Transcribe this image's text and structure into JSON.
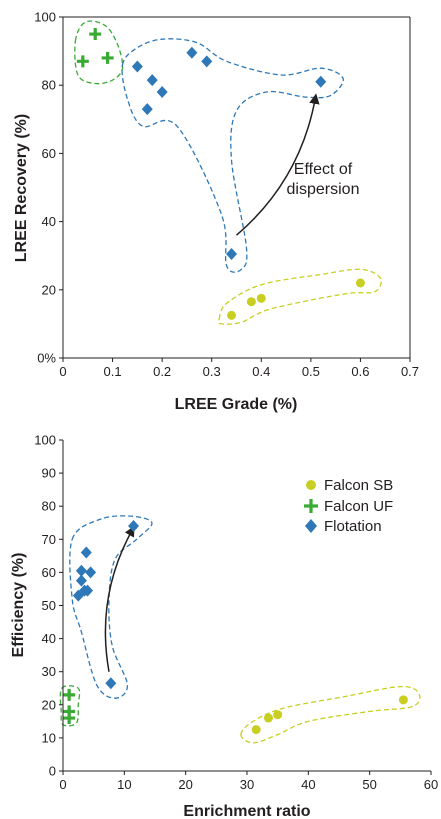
{
  "colors": {
    "falcon_sb": "#c8cf22",
    "falcon_uf": "#3aaa35",
    "flotation": "#2e78b7",
    "axis": "#231f20",
    "arrow": "#231f20"
  },
  "chart_data": [
    {
      "type": "scatter",
      "xlabel": "LREE Grade (%)",
      "ylabel": "LREE Recovery (%)",
      "xlim": [
        0,
        0.7
      ],
      "ylim": [
        0,
        100
      ],
      "x_ticks": [
        "0",
        "0.1",
        "0.2",
        "0.3",
        "0.4",
        "0.5",
        "0.6",
        "0.7"
      ],
      "y_ticks": [
        "0%",
        "20",
        "40",
        "60",
        "80",
        "100"
      ],
      "x_tick_values": [
        0,
        0.1,
        0.2,
        0.3,
        0.4,
        0.5,
        0.6,
        0.7
      ],
      "y_tick_values": [
        0,
        20,
        40,
        60,
        80,
        100
      ],
      "grid": false,
      "legend": null,
      "annotation": {
        "line1": "Effect of",
        "line2": "dispersion",
        "x": 0.46,
        "y": 52
      },
      "arrow": {
        "from": [
          0.35,
          36
        ],
        "to": [
          0.51,
          77
        ]
      },
      "series": [
        {
          "key": "falcon_sb",
          "marker": "circle",
          "x": [
            0.34,
            0.38,
            0.4,
            0.6
          ],
          "y": [
            12.5,
            16.5,
            17.5,
            22.0
          ]
        },
        {
          "key": "falcon_uf",
          "marker": "plus",
          "x": [
            0.04,
            0.065,
            0.09
          ],
          "y": [
            87,
            95,
            88
          ]
        },
        {
          "key": "flotation",
          "marker": "diamond",
          "x": [
            0.15,
            0.17,
            0.18,
            0.2,
            0.26,
            0.29,
            0.34,
            0.52
          ],
          "y": [
            85.5,
            73,
            81.5,
            78,
            89.5,
            87,
            30.5,
            81
          ]
        }
      ],
      "hulls": [
        {
          "key": "falcon_uf",
          "points": [
            [
              0.025,
              93
            ],
            [
              0.045,
              98.5
            ],
            [
              0.085,
              97.5
            ],
            [
              0.11,
              92
            ],
            [
              0.12,
              85
            ],
            [
              0.1,
              81.5
            ],
            [
              0.065,
              80.5
            ],
            [
              0.03,
              83
            ]
          ]
        },
        {
          "key": "flotation",
          "points": [
            [
              0.12,
              86
            ],
            [
              0.15,
              91
            ],
            [
              0.2,
              93.5
            ],
            [
              0.27,
              92.5
            ],
            [
              0.33,
              87
            ],
            [
              0.44,
              83
            ],
            [
              0.52,
              85
            ],
            [
              0.565,
              82
            ],
            [
              0.54,
              77
            ],
            [
              0.49,
              76.5
            ],
            [
              0.41,
              78
            ],
            [
              0.35,
              72.5
            ],
            [
              0.34,
              58
            ],
            [
              0.37,
              32.5
            ],
            [
              0.36,
              26
            ],
            [
              0.33,
              27
            ],
            [
              0.32,
              42
            ],
            [
              0.23,
              68
            ],
            [
              0.16,
              68
            ],
            [
              0.13,
              76
            ]
          ]
        },
        {
          "key": "falcon_sb",
          "points": [
            [
              0.315,
              11.5
            ],
            [
              0.33,
              16
            ],
            [
              0.4,
              21.5
            ],
            [
              0.52,
              24.5
            ],
            [
              0.6,
              26
            ],
            [
              0.64,
              23.5
            ],
            [
              0.63,
              19.5
            ],
            [
              0.58,
              19
            ],
            [
              0.5,
              17
            ],
            [
              0.41,
              14
            ],
            [
              0.36,
              10.5
            ],
            [
              0.32,
              10
            ]
          ]
        }
      ]
    },
    {
      "type": "scatter",
      "xlabel": "Enrichment ratio",
      "ylabel": "Efficiency (%)",
      "xlim": [
        0,
        60
      ],
      "ylim": [
        0,
        100
      ],
      "x_ticks": [
        "0",
        "10",
        "20",
        "30",
        "40",
        "50",
        "60"
      ],
      "y_ticks": [
        "0",
        "10",
        "20",
        "30",
        "40",
        "50",
        "60",
        "70",
        "80",
        "90",
        "100"
      ],
      "x_tick_values": [
        0,
        10,
        20,
        30,
        40,
        50,
        60
      ],
      "y_tick_values": [
        0,
        10,
        20,
        30,
        40,
        50,
        60,
        70,
        80,
        90,
        100
      ],
      "grid": false,
      "legend": {
        "position": "top-right",
        "entries": [
          {
            "key": "falcon_sb",
            "label": "Falcon SB",
            "marker": "circle"
          },
          {
            "key": "falcon_uf",
            "label": "Falcon UF",
            "marker": "plus"
          },
          {
            "key": "flotation",
            "label": "Flotation",
            "marker": "diamond"
          }
        ]
      },
      "arrow": {
        "from": [
          7.5,
          30
        ],
        "to": [
          11.5,
          73.5
        ]
      },
      "series": [
        {
          "key": "falcon_sb",
          "marker": "circle",
          "x": [
            31.5,
            33.5,
            35.0,
            55.5
          ],
          "y": [
            12.5,
            16.0,
            17.0,
            21.5
          ]
        },
        {
          "key": "falcon_uf",
          "marker": "plus",
          "x": [
            1.0,
            1.0,
            1.0
          ],
          "y": [
            23,
            18,
            16
          ]
        },
        {
          "key": "flotation",
          "marker": "diamond",
          "x": [
            2.5,
            3.0,
            3.0,
            3.5,
            3.8,
            4.0,
            4.5,
            7.8,
            11.5
          ],
          "y": [
            53,
            57.5,
            60.5,
            54.5,
            66,
            54.5,
            60,
            26.5,
            74
          ]
        }
      ],
      "hulls": [
        {
          "key": "falcon_uf",
          "points": [
            [
              -0.2,
              25
            ],
            [
              2.5,
              25
            ],
            [
              2.5,
              20
            ],
            [
              2.2,
              14.5
            ],
            [
              0,
              14
            ],
            [
              -0.3,
              18
            ]
          ]
        },
        {
          "key": "flotation",
          "points": [
            [
              1.5,
              70
            ],
            [
              6,
              76
            ],
            [
              11,
              77
            ],
            [
              14.5,
              75
            ],
            [
              12,
              70
            ],
            [
              8.5,
              64
            ],
            [
              7.5,
              52
            ],
            [
              8,
              38
            ],
            [
              10.5,
              26
            ],
            [
              8.5,
              22
            ],
            [
              5.5,
              26
            ],
            [
              3,
              42
            ],
            [
              1.5,
              52
            ]
          ]
        },
        {
          "key": "falcon_sb",
          "points": [
            [
              29,
              11
            ],
            [
              31,
              15
            ],
            [
              36,
              19
            ],
            [
              46,
              22.5
            ],
            [
              55,
              25.5
            ],
            [
              58,
              23.5
            ],
            [
              57,
              19.5
            ],
            [
              50,
              18
            ],
            [
              40,
              15
            ],
            [
              35,
              11
            ],
            [
              31,
              8.5
            ]
          ]
        }
      ]
    }
  ]
}
